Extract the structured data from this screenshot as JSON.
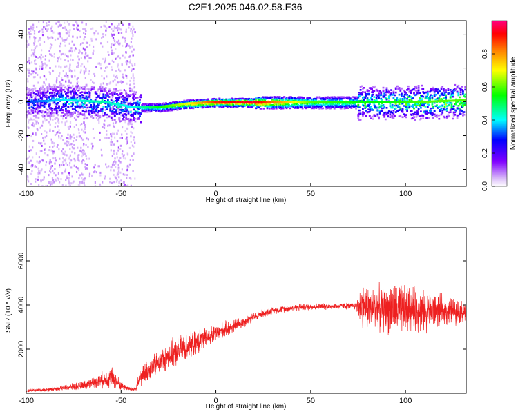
{
  "title": "C2E1.2025.046.02.58.E36",
  "chart_data": [
    {
      "type": "heatmap",
      "xlabel": "Height of straight line (km)",
      "ylabel": "Frequency (Hz)",
      "xlim": [
        -100,
        132
      ],
      "ylim": [
        -50,
        48
      ],
      "xticks": [
        -100,
        -50,
        0,
        50,
        100
      ],
      "yticks": [
        -40,
        -20,
        0,
        20,
        40
      ],
      "colorbar": {
        "label": "Normalized spectral amplitude",
        "range": [
          0,
          1
        ],
        "ticks": [
          0.0,
          0.2,
          0.4,
          0.6,
          0.8
        ]
      },
      "ridge": {
        "description_points_x": [
          -100,
          -80,
          -60,
          -45,
          -30,
          -15,
          0,
          20,
          50,
          75,
          90,
          110,
          132
        ],
        "center_freq_hz": [
          0,
          1,
          0,
          -3,
          -3,
          -1,
          0,
          0,
          0,
          0,
          0,
          0,
          1
        ],
        "amplitude": [
          0.3,
          0.4,
          0.45,
          0.4,
          0.55,
          0.7,
          0.9,
          0.95,
          0.6,
          0.55,
          0.55,
          0.6,
          0.6
        ]
      }
    },
    {
      "type": "line",
      "xlabel": "Height of straight line (km)",
      "ylabel": "SNR (10 * v/v)",
      "xlim": [
        -100,
        132
      ],
      "ylim": [
        0,
        7500
      ],
      "xticks": [
        -100,
        -50,
        0,
        50,
        100
      ],
      "yticks": [
        2000,
        4000,
        6000
      ],
      "series": [
        {
          "color": "#ee2020",
          "x": [
            -100,
            -90,
            -80,
            -70,
            -60,
            -55,
            -50,
            -45,
            -42,
            -40,
            -35,
            -30,
            -25,
            -20,
            -15,
            -10,
            -5,
            0,
            5,
            10,
            15,
            20,
            25,
            30,
            35,
            40,
            45,
            50,
            55,
            60,
            65,
            70,
            74,
            76,
            80,
            85,
            90,
            95,
            100,
            105,
            110,
            115,
            120,
            125,
            130,
            132
          ],
          "y": [
            120,
            160,
            240,
            360,
            600,
            720,
            350,
            180,
            200,
            700,
            1100,
            1400,
            1700,
            1900,
            2100,
            2300,
            2500,
            2700,
            2900,
            3050,
            3250,
            3450,
            3620,
            3750,
            3820,
            3870,
            3900,
            3920,
            3930,
            3940,
            3950,
            3950,
            3950,
            4000,
            3900,
            3850,
            3800,
            3800,
            3750,
            3800,
            3700,
            3750,
            3700,
            3750,
            3700,
            3700
          ],
          "noise_amplitude": [
            60,
            80,
            120,
            180,
            350,
            500,
            200,
            100,
            150,
            400,
            500,
            550,
            600,
            650,
            600,
            550,
            450,
            400,
            350,
            300,
            250,
            200,
            180,
            160,
            150,
            150,
            150,
            150,
            150,
            150,
            150,
            150,
            150,
            900,
            1000,
            1000,
            1100,
            1200,
            1100,
            1000,
            900,
            800,
            700,
            600,
            500,
            500
          ]
        }
      ]
    }
  ]
}
